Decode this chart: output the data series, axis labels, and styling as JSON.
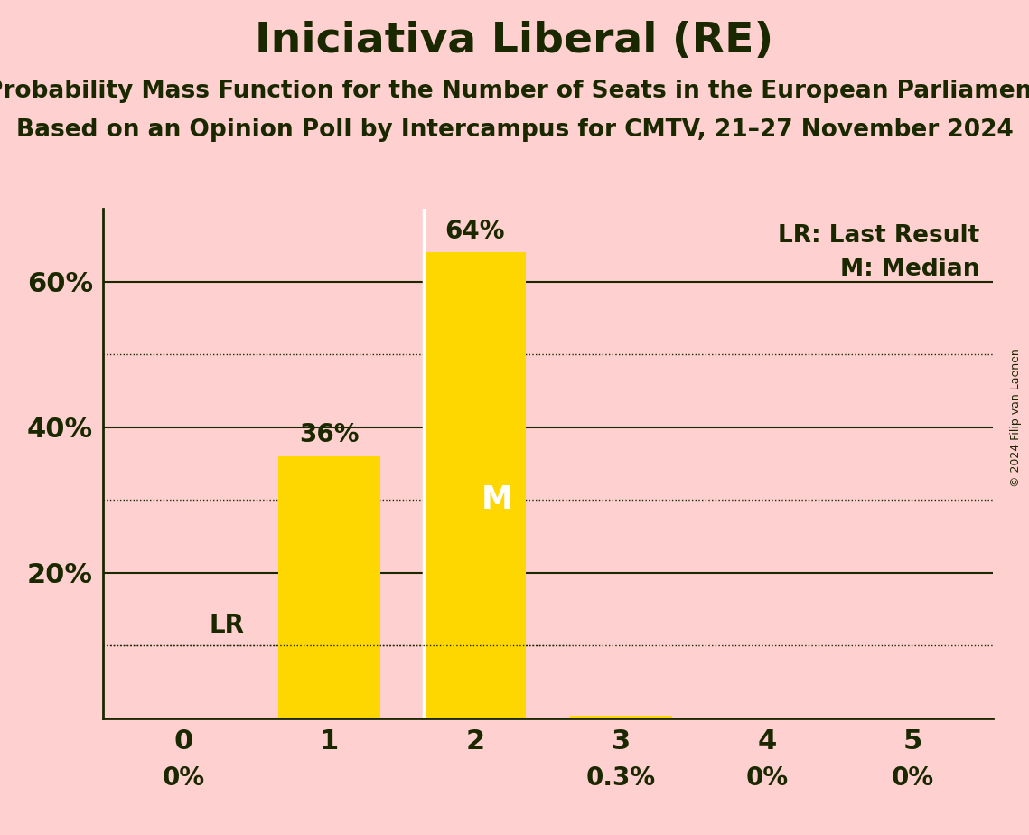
{
  "title": "Iniciativa Liberal (RE)",
  "subtitle1": "Probability Mass Function for the Number of Seats in the European Parliament",
  "subtitle2": "Based on an Opinion Poll by Intercampus for CMTV, 21–27 November 2024",
  "copyright": "© 2024 Filip van Laenen",
  "categories": [
    0,
    1,
    2,
    3,
    4,
    5
  ],
  "values": [
    0.0,
    36.0,
    64.0,
    0.3,
    0.0,
    0.0
  ],
  "bar_color": "#FFD700",
  "background_color": "#FFD0D0",
  "text_color": "#1a2800",
  "median": 2,
  "last_result": 1,
  "last_result_pct": 10.0,
  "ylim": [
    0,
    70
  ],
  "yticks": [
    0,
    20,
    40,
    60
  ],
  "dotted_lines": [
    10,
    30,
    50
  ],
  "solid_lines": [
    20,
    40,
    60
  ],
  "bar_width": 0.7,
  "title_fontsize": 34,
  "subtitle_fontsize": 19,
  "label_fontsize": 20,
  "tick_fontsize": 22,
  "legend_fontsize": 19,
  "copyright_fontsize": 9,
  "value_labels": [
    "0%",
    "36%",
    "64%",
    "0.3%",
    "0%",
    "0%"
  ]
}
